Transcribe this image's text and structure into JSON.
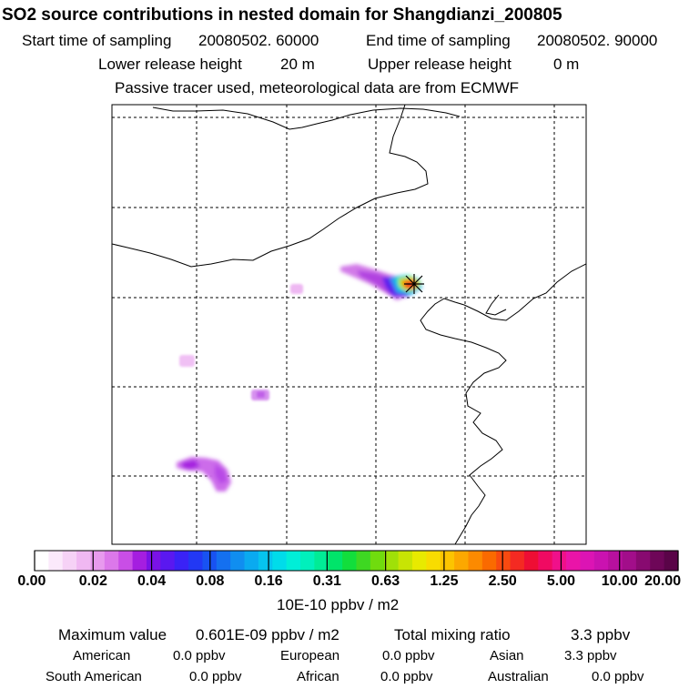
{
  "title": "SO2 source contributions in nested domain for Shangdianzi_200805",
  "header": {
    "start_label": "Start time of sampling",
    "start_value": "20080502. 60000",
    "end_label": "End time of sampling",
    "end_value": "20080502. 90000",
    "lower_label": "Lower release height",
    "lower_value": "20 m",
    "upper_label": "Upper release height",
    "upper_value": "0 m",
    "note": "Passive tracer used, meteorological data are from ECMWF"
  },
  "colorbar": {
    "ticks": [
      "0.00",
      "0.02",
      "0.04",
      "0.08",
      "0.16",
      "0.31",
      "0.63",
      "1.25",
      "2.50",
      "5.00",
      "10.00",
      "20.00"
    ],
    "units": "10E-10 ppbv / m2",
    "colors": [
      "#ffffff",
      "#fbe9fb",
      "#f6d2f6",
      "#f0b8f2",
      "#e89aee",
      "#dc78ea",
      "#c94ee6",
      "#a51ee0",
      "#7a12e6",
      "#5a18f0",
      "#3a22f6",
      "#2238f4",
      "#1852f2",
      "#1470f0",
      "#108ef0",
      "#0aaaf0",
      "#06c4ee",
      "#00dcea",
      "#00eed8",
      "#00f0bc",
      "#00ec96",
      "#00e46a",
      "#12de3c",
      "#3ed822",
      "#70dc0e",
      "#a0e008",
      "#c8e404",
      "#e8ea00",
      "#f8dc00",
      "#fcc400",
      "#fca800",
      "#fc8a00",
      "#fa6a00",
      "#f84a10",
      "#f42a22",
      "#ee0e34",
      "#f00a62",
      "#f0108a",
      "#ea14a8",
      "#dc14b4",
      "#ca12b0",
      "#b8109e",
      "#a20e8a",
      "#880a70",
      "#6e0658",
      "#5a0448"
    ]
  },
  "summary": {
    "max_label": "Maximum value",
    "max_value": "0.601E-09 ppbv / m2",
    "total_label": "Total mixing ratio",
    "total_value": "3.3 ppbv"
  },
  "regions": [
    {
      "name": "American",
      "value": "0.0 ppbv"
    },
    {
      "name": "European",
      "value": "0.0 ppbv"
    },
    {
      "name": "Asian",
      "value": "3.3 ppbv"
    },
    {
      "name": "South American",
      "value": "0.0 ppbv"
    },
    {
      "name": "African",
      "value": "0.0 ppbv"
    },
    {
      "name": "Australian",
      "value": "0.0 ppbv"
    }
  ]
}
